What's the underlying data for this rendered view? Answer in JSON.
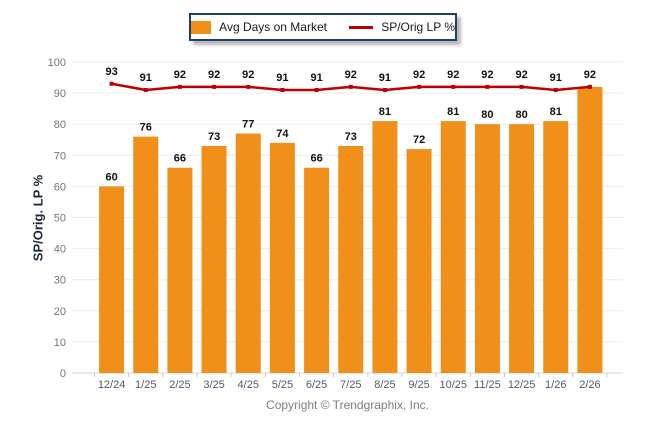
{
  "legend": {
    "items": [
      {
        "label": "Avg Days on Market",
        "swatch": "bar",
        "color": "#F0901A"
      },
      {
        "label": "SP/Orig LP %",
        "swatch": "line",
        "color": "#C00000"
      }
    ]
  },
  "y_axis": {
    "title": "SP/Orig. LP %",
    "ticks": [
      0,
      10,
      20,
      30,
      40,
      50,
      60,
      70,
      80,
      90,
      100
    ]
  },
  "footer": {
    "copyright": "Copyright © Trendgraphix, Inc."
  },
  "colors": {
    "bar": "#F0901A",
    "line": "#C00000",
    "gridline": "#ededed",
    "baseline": "#d6d6d6",
    "category_tick": "#c9c9c9",
    "y_tick_label": "#6f7480",
    "x_tick_label": "#505c6d",
    "value_label": "#111111",
    "legend_border": "#1f4066"
  },
  "chart_data": {
    "type": "bar",
    "title": "",
    "xlabel": "",
    "ylabel": "SP/Orig. LP %",
    "ylim": [
      0,
      100
    ],
    "grid": true,
    "legend_position": "top-center",
    "categories": [
      "12/24",
      "1/25",
      "2/25",
      "3/25",
      "4/25",
      "5/25",
      "6/25",
      "7/25",
      "8/25",
      "9/25",
      "10/25",
      "11/25",
      "12/25",
      "1/26",
      "2/26"
    ],
    "series": [
      {
        "name": "Avg Days on Market",
        "type": "bar",
        "color": "#F0901A",
        "values": [
          60,
          76,
          66,
          73,
          77,
          74,
          66,
          73,
          81,
          72,
          81,
          80,
          80,
          81,
          92
        ]
      },
      {
        "name": "SP/Orig LP %",
        "type": "line",
        "color": "#C00000",
        "values": [
          93,
          91,
          92,
          92,
          92,
          91,
          91,
          92,
          91,
          92,
          92,
          92,
          92,
          91,
          92
        ]
      }
    ]
  }
}
